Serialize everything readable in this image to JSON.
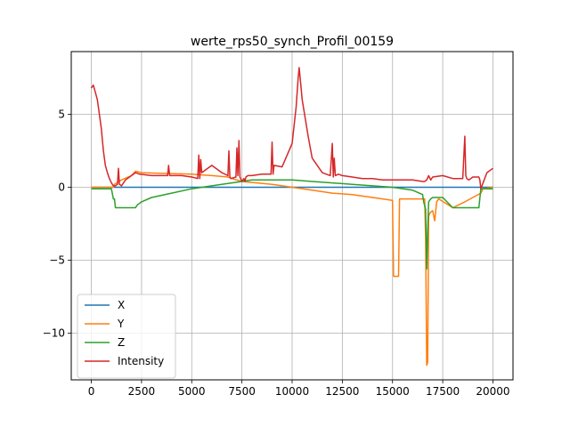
{
  "chart_data": {
    "type": "line",
    "title": "werte_rps50_synch_Profil_00159",
    "xlabel": "",
    "ylabel": "",
    "xlim": [
      -1000,
      21000
    ],
    "ylim": [
      -13.2,
      9.3
    ],
    "xticks": [
      0,
      2500,
      5000,
      7500,
      10000,
      12500,
      15000,
      17500,
      20000
    ],
    "xtick_labels": [
      "0",
      "2500",
      "5000",
      "7500",
      "10000",
      "12500",
      "15000",
      "17500",
      "20000"
    ],
    "yticks": [
      5,
      0,
      -5,
      -10
    ],
    "ytick_labels": [
      "5",
      "0",
      "−5",
      "−10"
    ],
    "grid": true,
    "legend": {
      "placement": "lower-left"
    },
    "series": [
      {
        "name": "X",
        "color": "#1f77b4",
        "x": [
          0,
          20000
        ],
        "y": [
          0,
          0
        ]
      },
      {
        "name": "Y",
        "color": "#ff7f0e",
        "x": [
          0,
          1100,
          1150,
          1500,
          2000,
          2200,
          2500,
          3500,
          5000,
          5500,
          6000,
          6800,
          7000,
          7500,
          9000,
          10000,
          11000,
          12000,
          13000,
          14000,
          15000,
          15050,
          15300,
          15350,
          16000,
          16600,
          16650,
          16700,
          16750,
          16800,
          16850,
          16900,
          17000,
          17100,
          17200,
          17300,
          18000,
          18600,
          19000,
          19400,
          19500,
          20000
        ],
        "y": [
          0,
          0,
          0.2,
          0.5,
          0.8,
          1.1,
          1.0,
          0.95,
          0.9,
          0.85,
          0.8,
          0.7,
          0.6,
          0.4,
          0.2,
          0.0,
          -0.2,
          -0.4,
          -0.5,
          -0.7,
          -0.9,
          -6.1,
          -6.1,
          -0.8,
          -0.8,
          -0.8,
          -3.5,
          -12.2,
          -12.0,
          -2.0,
          -1.8,
          -1.7,
          -1.6,
          -2.3,
          -1.0,
          -0.8,
          -1.4,
          -1.0,
          -0.7,
          -0.4,
          -0.1,
          0.0
        ]
      },
      {
        "name": "Z",
        "color": "#2ca02c",
        "x": [
          0,
          1000,
          1100,
          1150,
          1200,
          1300,
          2200,
          2300,
          2500,
          3000,
          4000,
          5000,
          6000,
          7000,
          8000,
          9000,
          10000,
          11000,
          12000,
          13000,
          14000,
          15000,
          16000,
          16500,
          16550,
          16650,
          16700,
          16750,
          16800,
          16900,
          17000,
          17500,
          18000,
          18500,
          19000,
          19300,
          19400,
          19500,
          20000
        ],
        "y": [
          -0.1,
          -0.1,
          -0.8,
          -0.8,
          -1.4,
          -1.4,
          -1.4,
          -1.2,
          -1.0,
          -0.7,
          -0.4,
          -0.1,
          0.1,
          0.3,
          0.5,
          0.5,
          0.5,
          0.4,
          0.3,
          0.2,
          0.1,
          0.0,
          -0.2,
          -0.5,
          -1.0,
          -1.5,
          -5.6,
          -3.0,
          -1.0,
          -0.8,
          -0.7,
          -0.7,
          -1.4,
          -1.4,
          -1.4,
          -1.4,
          -0.1,
          -0.1,
          -0.1
        ]
      },
      {
        "name": "Intensity",
        "color": "#d62728",
        "x": [
          0,
          100,
          200,
          300,
          400,
          500,
          600,
          700,
          800,
          900,
          1000,
          1100,
          1200,
          1300,
          1350,
          1400,
          1500,
          1700,
          1900,
          2000,
          2100,
          2200,
          2400,
          3000,
          3500,
          3800,
          3850,
          3900,
          4500,
          5000,
          5300,
          5350,
          5400,
          5450,
          5500,
          6000,
          6500,
          6800,
          6850,
          6900,
          6950,
          7200,
          7250,
          7300,
          7350,
          7400,
          7500,
          7600,
          7650,
          7700,
          7800,
          8000,
          8500,
          8950,
          9000,
          9050,
          9100,
          9500,
          10000,
          10200,
          10300,
          10350,
          10400,
          10500,
          10800,
          11000,
          11500,
          11900,
          12000,
          12050,
          12100,
          12150,
          12300,
          12500,
          13000,
          13500,
          14000,
          14500,
          15000,
          15500,
          16000,
          16500,
          16600,
          16700,
          16800,
          16900,
          17000,
          17500,
          18000,
          18500,
          18600,
          18650,
          18700,
          18800,
          19000,
          19300,
          19350,
          19400,
          19700,
          20000
        ],
        "y": [
          6.8,
          7.0,
          6.5,
          6.0,
          5.0,
          4.0,
          2.5,
          1.5,
          1.0,
          0.6,
          0.3,
          0.1,
          0.1,
          0.2,
          1.3,
          0.2,
          0.1,
          0.5,
          0.7,
          0.8,
          0.9,
          1.0,
          0.9,
          0.8,
          0.8,
          0.8,
          1.5,
          0.8,
          0.8,
          0.7,
          0.6,
          2.2,
          0.6,
          1.9,
          1.0,
          1.5,
          1.0,
          0.8,
          2.5,
          0.7,
          0.6,
          0.7,
          2.7,
          0.8,
          3.2,
          0.7,
          0.4,
          0.6,
          0.4,
          0.7,
          0.8,
          0.8,
          0.9,
          0.9,
          3.1,
          0.9,
          1.5,
          1.4,
          3.0,
          5.5,
          7.5,
          8.2,
          7.5,
          6.0,
          3.5,
          2.0,
          1.0,
          0.8,
          3.0,
          0.7,
          2.0,
          0.8,
          0.9,
          0.8,
          0.7,
          0.6,
          0.6,
          0.5,
          0.5,
          0.5,
          0.5,
          0.4,
          0.4,
          0.5,
          0.8,
          0.5,
          0.7,
          0.8,
          0.6,
          0.6,
          3.5,
          0.8,
          0.6,
          0.5,
          0.7,
          0.7,
          0.5,
          -0.1,
          1.0,
          1.3
        ]
      }
    ]
  }
}
